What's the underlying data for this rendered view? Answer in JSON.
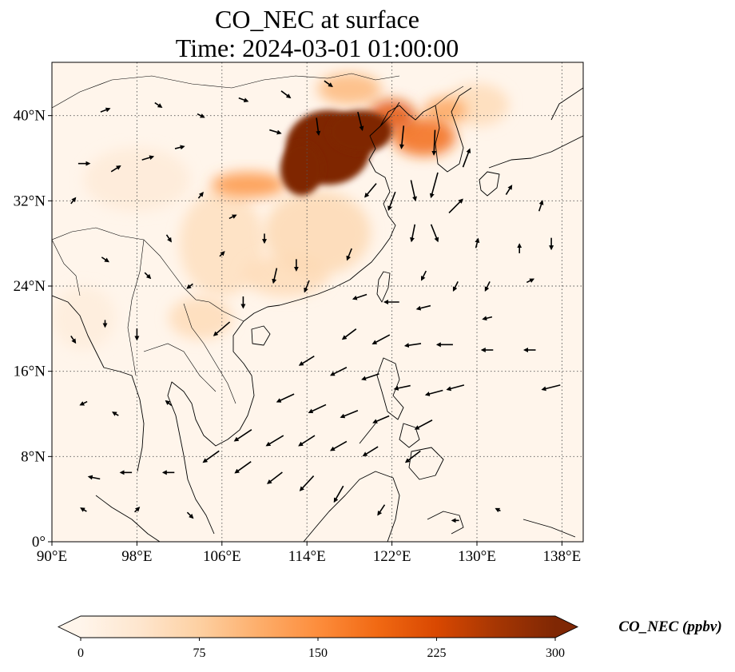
{
  "title": {
    "line1": "CO_NEC at surface",
    "line2": "Time: 2024-03-01 01:00:00"
  },
  "map": {
    "lon_range": [
      90,
      140
    ],
    "lat_range": [
      0,
      45
    ],
    "x_ticks": [
      {
        "value": 90,
        "label": "90°E"
      },
      {
        "value": 98,
        "label": "98°E"
      },
      {
        "value": 106,
        "label": "106°E"
      },
      {
        "value": 114,
        "label": "114°E"
      },
      {
        "value": 122,
        "label": "122°E"
      },
      {
        "value": 130,
        "label": "130°E"
      },
      {
        "value": 138,
        "label": "138°E"
      }
    ],
    "y_ticks": [
      {
        "value": 0,
        "label": "0°"
      },
      {
        "value": 8,
        "label": "8°N"
      },
      {
        "value": 16,
        "label": "16°N"
      },
      {
        "value": 24,
        "label": "24°N"
      },
      {
        "value": 32,
        "label": "32°N"
      },
      {
        "value": 40,
        "label": "40°N"
      }
    ]
  },
  "colorbar": {
    "label": "CO_NEC (ppbv)",
    "min": 0,
    "max": 300,
    "ticks": [
      "0",
      "75",
      "150",
      "225",
      "300"
    ],
    "stops": [
      "#fff5eb",
      "#fee6ce",
      "#fdd0a2",
      "#fdae6b",
      "#fd8d3c",
      "#f16913",
      "#d94801",
      "#a63603",
      "#7f2704"
    ]
  },
  "co_regions": [
    {
      "lon": 116.0,
      "lat": 37.0,
      "rx": 4.0,
      "ry": 3.5,
      "value": 300
    },
    {
      "lon": 119.0,
      "lat": 38.5,
      "rx": 3.0,
      "ry": 2.0,
      "value": 300
    },
    {
      "lon": 113.5,
      "lat": 35.0,
      "rx": 2.0,
      "ry": 2.5,
      "value": 300
    },
    {
      "lon": 122.0,
      "lat": 40.0,
      "rx": 2.2,
      "ry": 1.5,
      "value": 210
    },
    {
      "lon": 125.0,
      "lat": 38.0,
      "rx": 3.0,
      "ry": 1.8,
      "value": 185
    },
    {
      "lon": 127.0,
      "lat": 40.5,
      "rx": 2.0,
      "ry": 1.2,
      "value": 120
    },
    {
      "lon": 108.5,
      "lat": 33.5,
      "rx": 3.5,
      "ry": 1.2,
      "value": 140
    },
    {
      "lon": 115.0,
      "lat": 29.0,
      "rx": 5.0,
      "ry": 4.0,
      "value": 60
    },
    {
      "lon": 106.0,
      "lat": 28.0,
      "rx": 4.0,
      "ry": 5.0,
      "value": 50
    },
    {
      "lon": 112.0,
      "lat": 25.0,
      "rx": 4.0,
      "ry": 2.0,
      "value": 55
    },
    {
      "lon": 104.0,
      "lat": 21.0,
      "rx": 3.0,
      "ry": 2.0,
      "value": 55
    },
    {
      "lon": 98.0,
      "lat": 34.0,
      "rx": 5.0,
      "ry": 3.0,
      "value": 25
    },
    {
      "lon": 130.0,
      "lat": 41.0,
      "rx": 3.0,
      "ry": 2.0,
      "value": 55
    },
    {
      "lon": 93.0,
      "lat": 21.0,
      "rx": 3.0,
      "ry": 3.0,
      "value": 20
    },
    {
      "lon": 118.0,
      "lat": 42.5,
      "rx": 3.0,
      "ry": 1.5,
      "value": 100
    }
  ],
  "wind_vectors": [
    {
      "lon": 111,
      "lat": 38.5,
      "u": 1.0,
      "v": -0.3
    },
    {
      "lon": 115,
      "lat": 39.0,
      "u": 0.2,
      "v": -1.5
    },
    {
      "lon": 119,
      "lat": 39.5,
      "u": 0.4,
      "v": -1.6
    },
    {
      "lon": 123,
      "lat": 38.0,
      "u": -0.2,
      "v": -2.0
    },
    {
      "lon": 126,
      "lat": 37.5,
      "u": -0.1,
      "v": -2.2
    },
    {
      "lon": 129,
      "lat": 36.0,
      "u": 0.6,
      "v": 1.6
    },
    {
      "lon": 124,
      "lat": 33.0,
      "u": 0.4,
      "v": -1.8
    },
    {
      "lon": 126,
      "lat": 33.5,
      "u": -0.6,
      "v": -2.2
    },
    {
      "lon": 128,
      "lat": 31.5,
      "u": 1.2,
      "v": 1.2
    },
    {
      "lon": 122,
      "lat": 32.0,
      "u": -0.6,
      "v": -1.6
    },
    {
      "lon": 120,
      "lat": 33.0,
      "u": -1.0,
      "v": -1.2
    },
    {
      "lon": 124,
      "lat": 29.0,
      "u": -0.3,
      "v": -1.5
    },
    {
      "lon": 126,
      "lat": 29.0,
      "u": 0.6,
      "v": -1.5
    },
    {
      "lon": 130,
      "lat": 28.0,
      "u": 0.2,
      "v": 0.8
    },
    {
      "lon": 134,
      "lat": 27.5,
      "u": 0.0,
      "v": 0.8
    },
    {
      "lon": 137,
      "lat": 28.0,
      "u": 0.0,
      "v": -1.0
    },
    {
      "lon": 118,
      "lat": 27.0,
      "u": -0.4,
      "v": -1.0
    },
    {
      "lon": 113,
      "lat": 26.0,
      "u": 0.0,
      "v": -1.0
    },
    {
      "lon": 111,
      "lat": 25.0,
      "u": -0.3,
      "v": -1.3
    },
    {
      "lon": 114,
      "lat": 24.0,
      "u": -0.4,
      "v": -1.0
    },
    {
      "lon": 108,
      "lat": 22.5,
      "u": 0.0,
      "v": -1.0
    },
    {
      "lon": 106,
      "lat": 20.0,
      "u": -1.4,
      "v": -1.2
    },
    {
      "lon": 119,
      "lat": 23.0,
      "u": -1.2,
      "v": -0.4
    },
    {
      "lon": 122,
      "lat": 22.5,
      "u": -1.3,
      "v": 0.0
    },
    {
      "lon": 125,
      "lat": 22.0,
      "u": -1.2,
      "v": -0.3
    },
    {
      "lon": 118,
      "lat": 19.5,
      "u": -1.2,
      "v": -0.9
    },
    {
      "lon": 121,
      "lat": 19.0,
      "u": -1.5,
      "v": -0.8
    },
    {
      "lon": 124,
      "lat": 18.5,
      "u": -1.4,
      "v": -0.2
    },
    {
      "lon": 127,
      "lat": 18.5,
      "u": -1.4,
      "v": 0.0
    },
    {
      "lon": 131,
      "lat": 18.0,
      "u": -1.0,
      "v": 0.0
    },
    {
      "lon": 135,
      "lat": 18.0,
      "u": -1.0,
      "v": 0.0
    },
    {
      "lon": 114,
      "lat": 17.0,
      "u": -1.3,
      "v": -0.8
    },
    {
      "lon": 117,
      "lat": 16.0,
      "u": -1.4,
      "v": -0.7
    },
    {
      "lon": 120,
      "lat": 15.5,
      "u": -1.5,
      "v": -0.5
    },
    {
      "lon": 123,
      "lat": 14.5,
      "u": -1.4,
      "v": -0.3
    },
    {
      "lon": 126,
      "lat": 14.0,
      "u": -1.5,
      "v": -0.4
    },
    {
      "lon": 128,
      "lat": 14.5,
      "u": -1.5,
      "v": -0.4
    },
    {
      "lon": 137,
      "lat": 14.5,
      "u": -1.6,
      "v": -0.4
    },
    {
      "lon": 112,
      "lat": 13.5,
      "u": -1.5,
      "v": -0.7
    },
    {
      "lon": 115,
      "lat": 12.5,
      "u": -1.5,
      "v": -0.7
    },
    {
      "lon": 118,
      "lat": 12.0,
      "u": -1.5,
      "v": -0.6
    },
    {
      "lon": 121,
      "lat": 11.5,
      "u": -1.4,
      "v": -0.6
    },
    {
      "lon": 125,
      "lat": 11.0,
      "u": -1.5,
      "v": -0.8
    },
    {
      "lon": 108,
      "lat": 10.0,
      "u": -1.5,
      "v": -1.0
    },
    {
      "lon": 111,
      "lat": 9.5,
      "u": -1.5,
      "v": -0.9
    },
    {
      "lon": 114,
      "lat": 9.5,
      "u": -1.4,
      "v": -0.9
    },
    {
      "lon": 117,
      "lat": 9.0,
      "u": -1.4,
      "v": -0.8
    },
    {
      "lon": 120,
      "lat": 8.5,
      "u": -1.3,
      "v": -0.8
    },
    {
      "lon": 124,
      "lat": 8.0,
      "u": -1.3,
      "v": -1.0
    },
    {
      "lon": 105,
      "lat": 8.0,
      "u": -1.4,
      "v": -1.0
    },
    {
      "lon": 108,
      "lat": 7.0,
      "u": -1.4,
      "v": -1.0
    },
    {
      "lon": 111,
      "lat": 6.0,
      "u": -1.3,
      "v": -1.0
    },
    {
      "lon": 114,
      "lat": 5.5,
      "u": -1.2,
      "v": -1.3
    },
    {
      "lon": 117,
      "lat": 4.5,
      "u": -0.8,
      "v": -1.4
    },
    {
      "lon": 101,
      "lat": 6.5,
      "u": -1.0,
      "v": 0.0
    },
    {
      "lon": 97,
      "lat": 6.5,
      "u": -1.0,
      "v": 0.0
    },
    {
      "lon": 94,
      "lat": 6.0,
      "u": -1.0,
      "v": 0.2
    },
    {
      "lon": 93,
      "lat": 13.0,
      "u": -0.6,
      "v": -0.3
    },
    {
      "lon": 96,
      "lat": 12.0,
      "u": -0.5,
      "v": 0.3
    },
    {
      "lon": 101,
      "lat": 13.0,
      "u": -0.5,
      "v": 0.4
    },
    {
      "lon": 98,
      "lat": 19.5,
      "u": 0.0,
      "v": -1.0
    },
    {
      "lon": 95,
      "lat": 20.5,
      "u": 0.0,
      "v": -0.6
    },
    {
      "lon": 92,
      "lat": 19.0,
      "u": 0.4,
      "v": -0.6
    },
    {
      "lon": 103,
      "lat": 24.0,
      "u": -0.5,
      "v": -0.4
    },
    {
      "lon": 99,
      "lat": 25.0,
      "u": 0.5,
      "v": -0.5
    },
    {
      "lon": 95,
      "lat": 26.5,
      "u": 0.6,
      "v": -0.4
    },
    {
      "lon": 92,
      "lat": 32.0,
      "u": 0.4,
      "v": 0.5
    },
    {
      "lon": 93,
      "lat": 35.5,
      "u": 1.0,
      "v": 0.0
    },
    {
      "lon": 96,
      "lat": 35.0,
      "u": 0.8,
      "v": 0.5
    },
    {
      "lon": 99,
      "lat": 36.0,
      "u": 1.0,
      "v": 0.3
    },
    {
      "lon": 102,
      "lat": 37.0,
      "u": 0.8,
      "v": 0.2
    },
    {
      "lon": 95,
      "lat": 40.5,
      "u": 0.8,
      "v": 0.3
    },
    {
      "lon": 100,
      "lat": 41.0,
      "u": 0.6,
      "v": -0.4
    },
    {
      "lon": 104,
      "lat": 40.0,
      "u": 0.6,
      "v": -0.3
    },
    {
      "lon": 108,
      "lat": 41.5,
      "u": 0.8,
      "v": -0.3
    },
    {
      "lon": 112,
      "lat": 42.0,
      "u": 0.8,
      "v": -0.6
    },
    {
      "lon": 116,
      "lat": 43.0,
      "u": 0.7,
      "v": -0.5
    },
    {
      "lon": 104,
      "lat": 32.5,
      "u": 0.4,
      "v": 0.5
    },
    {
      "lon": 107,
      "lat": 30.5,
      "u": 0.6,
      "v": 0.3
    },
    {
      "lon": 106,
      "lat": 27.0,
      "u": 0.4,
      "v": 0.4
    },
    {
      "lon": 110,
      "lat": 28.5,
      "u": 0.0,
      "v": -0.8
    },
    {
      "lon": 101,
      "lat": 28.5,
      "u": 0.4,
      "v": -0.6
    },
    {
      "lon": 133,
      "lat": 33.0,
      "u": 0.5,
      "v": 0.8
    },
    {
      "lon": 136,
      "lat": 31.5,
      "u": 0.3,
      "v": 0.9
    },
    {
      "lon": 131,
      "lat": 24.0,
      "u": -0.4,
      "v": -0.8
    },
    {
      "lon": 135,
      "lat": 24.5,
      "u": 0.6,
      "v": 0.3
    },
    {
      "lon": 131,
      "lat": 21.0,
      "u": -0.8,
      "v": -0.2
    },
    {
      "lon": 128,
      "lat": 24.0,
      "u": -0.4,
      "v": -0.8
    },
    {
      "lon": 125,
      "lat": 25.0,
      "u": -0.4,
      "v": -0.8
    },
    {
      "lon": 93,
      "lat": 3.0,
      "u": -0.5,
      "v": 0.3
    },
    {
      "lon": 98,
      "lat": 3.0,
      "u": 0.4,
      "v": 0.4
    },
    {
      "lon": 103,
      "lat": 2.5,
      "u": 0.5,
      "v": -0.5
    },
    {
      "lon": 121,
      "lat": 3.0,
      "u": -0.6,
      "v": -0.9
    },
    {
      "lon": 128,
      "lat": 2.0,
      "u": -0.6,
      "v": 0.0
    },
    {
      "lon": 132,
      "lat": 3.0,
      "u": -0.4,
      "v": 0.2
    }
  ]
}
